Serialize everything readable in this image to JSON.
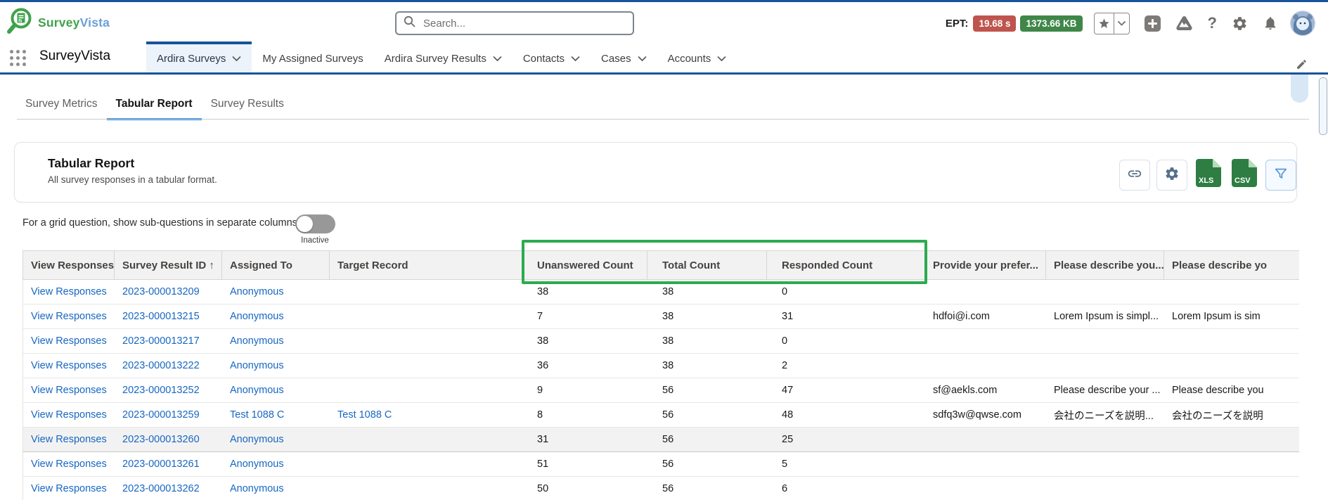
{
  "header": {
    "brand": {
      "name_green": "Survey",
      "name_blue": "Vista"
    },
    "search": {
      "placeholder": "Search..."
    },
    "ept": {
      "label": "EPT:",
      "time_badge": "19.68 s",
      "size_badge": "1373.66 KB"
    },
    "icons": {
      "help_glyph": "?"
    }
  },
  "nav": {
    "app_name": "SurveyVista",
    "tabs": [
      {
        "label": "Ardira Surveys",
        "selected": true,
        "menu": true
      },
      {
        "label": "My Assigned Surveys",
        "selected": false,
        "menu": false
      },
      {
        "label": "Ardira Survey Results",
        "selected": false,
        "menu": true
      },
      {
        "label": "Contacts",
        "selected": false,
        "menu": true
      },
      {
        "label": "Cases",
        "selected": false,
        "menu": true
      },
      {
        "label": "Accounts",
        "selected": false,
        "menu": true
      }
    ]
  },
  "subtabs": [
    {
      "label": "Survey Metrics",
      "selected": false
    },
    {
      "label": "Tabular Report",
      "selected": true
    },
    {
      "label": "Survey Results",
      "selected": false
    }
  ],
  "report": {
    "title": "Tabular Report",
    "subtitle": "All survey responses in a tabular format.",
    "xls_label": "XLS",
    "csv_label": "CSV"
  },
  "grid_toggle": {
    "label": "For a grid question, show sub-questions in separate columns",
    "state_label": "Inactive",
    "on": false
  },
  "table": {
    "columns": [
      "View Responses",
      "Survey Result ID ↑",
      "Assigned To",
      "Target Record",
      "Unanswered Count",
      "Total Count",
      "Responded Count",
      "Provide your prefer...",
      "Please describe you...",
      "Please describe yo"
    ],
    "highlighted_columns": [
      "Unanswered Count",
      "Total Count",
      "Responded Count"
    ],
    "rows": [
      {
        "view": "View Responses",
        "id": "2023-000013209",
        "assigned_to": "Anonymous",
        "target": "",
        "unanswered": "38",
        "total": "38",
        "responded": "0",
        "preference": "",
        "describe1": "",
        "describe2": ""
      },
      {
        "view": "View Responses",
        "id": "2023-000013215",
        "assigned_to": "Anonymous",
        "target": "",
        "unanswered": "7",
        "total": "38",
        "responded": "31",
        "preference": "hdfoi@i.com",
        "describe1": "Lorem Ipsum is simpl...",
        "describe2": "Lorem Ipsum is sim"
      },
      {
        "view": "View Responses",
        "id": "2023-000013217",
        "assigned_to": "Anonymous",
        "target": "",
        "unanswered": "38",
        "total": "38",
        "responded": "0",
        "preference": "",
        "describe1": "",
        "describe2": ""
      },
      {
        "view": "View Responses",
        "id": "2023-000013222",
        "assigned_to": "Anonymous",
        "target": "",
        "unanswered": "36",
        "total": "38",
        "responded": "2",
        "preference": "",
        "describe1": "",
        "describe2": ""
      },
      {
        "view": "View Responses",
        "id": "2023-000013252",
        "assigned_to": "Anonymous",
        "target": "",
        "unanswered": "9",
        "total": "56",
        "responded": "47",
        "preference": "sf@aekls.com",
        "describe1": "Please describe your ...",
        "describe2": "Please describe you"
      },
      {
        "view": "View Responses",
        "id": "2023-000013259",
        "assigned_to": "Test 1088 C",
        "target": "Test 1088 C",
        "unanswered": "8",
        "total": "56",
        "responded": "48",
        "preference": "sdfq3w@qwse.com",
        "describe1": "会社のニーズを説明...",
        "describe2": "会社のニーズを説明"
      },
      {
        "view": "View Responses",
        "id": "2023-000013260",
        "assigned_to": "Anonymous",
        "target": "",
        "unanswered": "31",
        "total": "56",
        "responded": "25",
        "preference": "",
        "describe1": "",
        "describe2": "",
        "highlighted": true
      },
      {
        "view": "View Responses",
        "id": "2023-000013261",
        "assigned_to": "Anonymous",
        "target": "",
        "unanswered": "51",
        "total": "56",
        "responded": "5",
        "preference": "",
        "describe1": "",
        "describe2": ""
      },
      {
        "view": "View Responses",
        "id": "2023-000013262",
        "assigned_to": "Anonymous",
        "target": "",
        "unanswered": "50",
        "total": "56",
        "responded": "6",
        "preference": "",
        "describe1": "",
        "describe2": ""
      }
    ]
  },
  "colors": {
    "highlight_box": "#2cab50",
    "link": "#1767c2",
    "nav_accent": "#17549b",
    "subtab_accent": "#2f8de4",
    "ept_time_bg": "#bf544e",
    "ept_size_bg": "#3f8749"
  }
}
